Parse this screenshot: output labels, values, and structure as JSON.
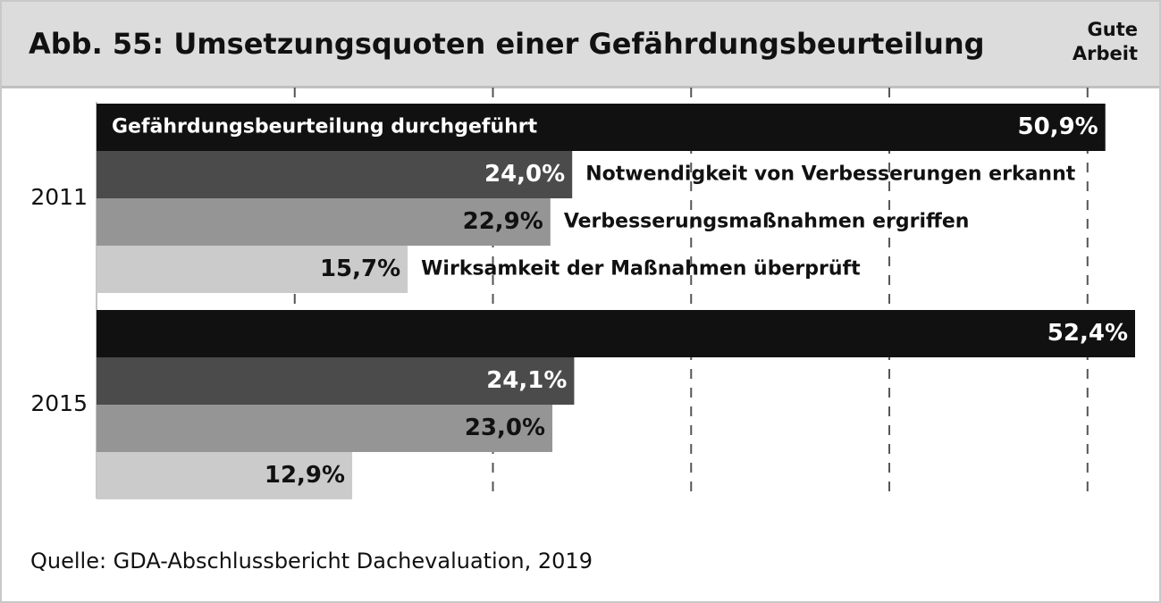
{
  "header": {
    "title": "Abb. 55: Umsetzungsquoten einer Gefährdungsbeurteilung",
    "brand_line1": "Gute",
    "brand_line2": "Arbeit"
  },
  "footer": {
    "source": "Quelle: GDA-Abschlussbericht Dachevaluation, 2019"
  },
  "chart_data": {
    "type": "bar",
    "orientation": "horizontal",
    "title": "Abb. 55: Umsetzungsquoten einer Gefährdungsbeurteilung",
    "xlim": [
      0,
      52.4
    ],
    "grid": "vertical dashed",
    "groups": [
      "2011",
      "2015"
    ],
    "series": [
      {
        "name": "Gefährdungsbeurteilung durchgeführt",
        "color": "#111111",
        "label_color": "#ffffff",
        "values": [
          50.9,
          52.4
        ],
        "value_labels": [
          "50,9%",
          "52,4%"
        ]
      },
      {
        "name": "Notwendigkeit von Verbesserungen erkannt",
        "color": "#4b4b4b",
        "label_color": "#ffffff",
        "values": [
          24.0,
          24.1
        ],
        "value_labels": [
          "24,0%",
          "24,1%"
        ]
      },
      {
        "name": "Verbesserungsmaßnahmen ergriffen",
        "color": "#959595",
        "label_color": "#111111",
        "values": [
          22.9,
          23.0
        ],
        "value_labels": [
          "22,9%",
          "23,0%"
        ]
      },
      {
        "name": "Wirksamkeit der Maßnahmen überprüft",
        "color": "#cbcbcb",
        "label_color": "#111111",
        "values": [
          15.7,
          12.9
        ],
        "value_labels": [
          "15,7%",
          "12,9%"
        ]
      }
    ]
  }
}
